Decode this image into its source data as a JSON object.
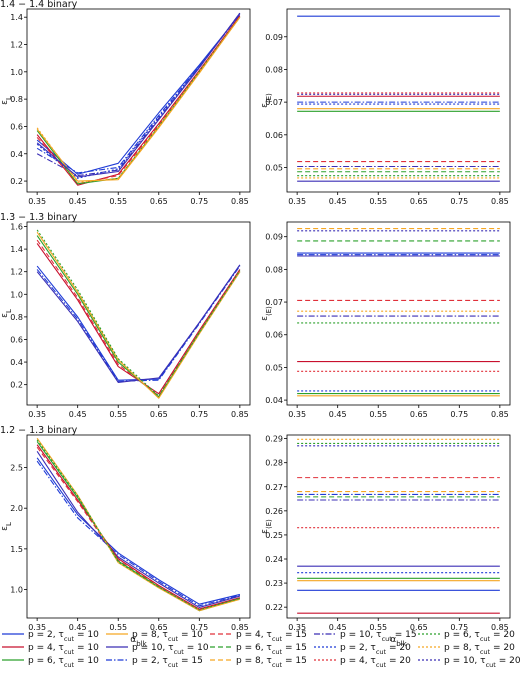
{
  "figure": {
    "series_styles": [
      {
        "key": "p2_10",
        "label": "p = 2, τcut = 10",
        "color": "#1f3bd6",
        "dash": ""
      },
      {
        "key": "p4_10",
        "label": "p = 4, τcut = 10",
        "color": "#c8102e",
        "dash": ""
      },
      {
        "key": "p6_10",
        "label": "p = 6, τcut = 10",
        "color": "#2ca02c",
        "dash": ""
      },
      {
        "key": "p8_10",
        "label": "p = 8, τcut = 10",
        "color": "#f5a623",
        "dash": ""
      },
      {
        "key": "p10_10",
        "label": "p = 10, τcut = 10",
        "color": "#3b2fb5",
        "dash": ""
      },
      {
        "key": "p2_15",
        "label": "p = 2, τcut = 15",
        "color": "#1f3bd6",
        "dash": "6,2,1.5,2"
      },
      {
        "key": "p4_15",
        "label": "p = 4, τcut = 15",
        "color": "#e0303a",
        "dash": "5,3"
      },
      {
        "key": "p6_15",
        "label": "p = 6, τcut = 15",
        "color": "#2ca02c",
        "dash": "5,3"
      },
      {
        "key": "p8_15",
        "label": "p = 8, τcut = 15",
        "color": "#f5a623",
        "dash": "5,3"
      },
      {
        "key": "p10_15",
        "label": "p = 10, τcut = 15",
        "color": "#3b2fb5",
        "dash": "6,2,1.5,2"
      },
      {
        "key": "p2_20",
        "label": "p = 2, τcut = 20",
        "color": "#1f3bd6",
        "dash": "2,2"
      },
      {
        "key": "p4_20",
        "label": "p = 4, τcut = 20",
        "color": "#e0303a",
        "dash": "2,2"
      },
      {
        "key": "p6_20",
        "label": "p = 6, τcut = 20",
        "color": "#2ca02c",
        "dash": "2,2"
      },
      {
        "key": "p8_20",
        "label": "p = 8, τcut = 20",
        "color": "#f5a623",
        "dash": "2,2"
      },
      {
        "key": "p10_20",
        "label": "p = 10, τcut = 20",
        "color": "#3b2fb5",
        "dash": "2,2"
      }
    ],
    "legend": {
      "placement": "bottom",
      "columns": [
        {
          "items": [
            "p = 2, τcut = 10",
            "p = 4, τcut = 10",
            "p = 6, τcut = 10"
          ]
        },
        {
          "items": [
            "p = 8, τcut = 10",
            "p = 10, τcut = 10",
            "p = 2, τcut = 15"
          ]
        },
        {
          "items": [
            "p = 4, τcut = 15",
            "p = 6, τcut = 15",
            "p = 8, τcut = 15"
          ]
        },
        {
          "items": [
            "p = 10, τcut = 15",
            "p = 2, τcut = 20",
            "p = 4, τcut = 20"
          ]
        },
        {
          "items": [
            "p = 6, τcut = 20",
            "p = 8, τcut = 20",
            "p = 10, τcut = 20"
          ]
        }
      ]
    }
  },
  "chart_data": [
    {
      "panel": "row1-left",
      "type": "line",
      "title": "1.4 − 1.4 binary",
      "ylabel": "εL",
      "xlabel": "",
      "x": [
        0.35,
        0.45,
        0.55,
        0.65,
        0.75,
        0.85
      ],
      "xticks": [
        "0.35",
        "0.45",
        "0.55",
        "0.65",
        "0.75",
        "0.85"
      ],
      "yticks": [
        "0.2",
        "0.4",
        "0.6",
        "0.8",
        "1.0",
        "1.2",
        "1.4"
      ],
      "xlim": [
        0.325,
        0.875
      ],
      "ylim": [
        0.12,
        1.46
      ],
      "grid": false,
      "series": [
        {
          "style": "p2_10",
          "values": [
            0.5,
            0.25,
            0.33,
            0.7,
            1.05,
            1.42
          ]
        },
        {
          "style": "p2_15",
          "values": [
            0.44,
            0.26,
            0.3,
            0.68,
            1.04,
            1.42
          ]
        },
        {
          "style": "p10_15",
          "values": [
            0.4,
            0.24,
            0.28,
            0.66,
            1.03,
            1.43
          ]
        },
        {
          "style": "p2_20",
          "values": [
            0.47,
            0.22,
            0.29,
            0.67,
            1.04,
            1.42
          ]
        },
        {
          "style": "p4_10",
          "values": [
            0.54,
            0.17,
            0.25,
            0.62,
            1.01,
            1.41
          ]
        },
        {
          "style": "p4_15",
          "values": [
            0.52,
            0.18,
            0.24,
            0.61,
            1.0,
            1.4
          ]
        },
        {
          "style": "p6_10",
          "values": [
            0.57,
            0.18,
            0.22,
            0.6,
            1.0,
            1.4
          ]
        },
        {
          "style": "p8_10",
          "values": [
            0.58,
            0.2,
            0.21,
            0.59,
            0.99,
            1.4
          ]
        },
        {
          "style": "p8_20",
          "values": [
            0.59,
            0.19,
            0.22,
            0.6,
            1.0,
            1.4
          ]
        },
        {
          "style": "p10_10",
          "values": [
            0.48,
            0.23,
            0.27,
            0.65,
            1.03,
            1.43
          ]
        }
      ]
    },
    {
      "panel": "row1-right",
      "type": "line",
      "title": "",
      "ylabel": "ε⟨E⟩",
      "xlabel": "",
      "x": [
        0.35,
        0.85
      ],
      "xticks": [
        "0.35",
        "0.45",
        "0.55",
        "0.65",
        "0.75",
        "0.85"
      ],
      "yticks": [
        "0.05",
        "0.06",
        "0.07",
        "0.08",
        "0.09"
      ],
      "xlim": [
        0.325,
        0.875
      ],
      "ylim": [
        0.0425,
        0.0985
      ],
      "grid": false,
      "series": [
        {
          "style": "p2_10",
          "values": [
            0.0963,
            0.0963
          ]
        },
        {
          "style": "p4_20",
          "values": [
            0.0728,
            0.0728
          ]
        },
        {
          "style": "p10_20",
          "values": [
            0.0724,
            0.0724
          ]
        },
        {
          "style": "p4_10",
          "values": [
            0.0718,
            0.0718
          ]
        },
        {
          "style": "p2_15",
          "values": [
            0.07,
            0.07
          ]
        },
        {
          "style": "p2_20",
          "values": [
            0.0694,
            0.0694
          ]
        },
        {
          "style": "p8_10",
          "values": [
            0.068,
            0.068
          ]
        },
        {
          "style": "p6_10",
          "values": [
            0.0672,
            0.0672
          ]
        },
        {
          "style": "p4_15",
          "values": [
            0.0518,
            0.0518
          ]
        },
        {
          "style": "p10_15",
          "values": [
            0.0503,
            0.0503
          ]
        },
        {
          "style": "p8_15",
          "values": [
            0.0496,
            0.0496
          ]
        },
        {
          "style": "p6_15",
          "values": [
            0.0487,
            0.0487
          ]
        },
        {
          "style": "p6_20",
          "values": [
            0.0475,
            0.0475
          ]
        },
        {
          "style": "p8_20",
          "values": [
            0.0468,
            0.0468
          ]
        },
        {
          "style": "p10_10",
          "values": [
            0.0458,
            0.0458
          ]
        }
      ]
    },
    {
      "panel": "row2-left",
      "type": "line",
      "title": "1.3 − 1.3 binary",
      "ylabel": "εL",
      "xlabel": "",
      "x": [
        0.35,
        0.45,
        0.55,
        0.65,
        0.75,
        0.85
      ],
      "xticks": [
        "0.35",
        "0.45",
        "0.55",
        "0.65",
        "0.75",
        "0.85"
      ],
      "yticks": [
        "0.2",
        "0.4",
        "0.6",
        "0.8",
        "1.0",
        "1.2",
        "1.4",
        "1.6"
      ],
      "xlim": [
        0.325,
        0.875
      ],
      "ylim": [
        0.02,
        1.64
      ],
      "grid": false,
      "series": [
        {
          "style": "p2_10",
          "values": [
            1.25,
            0.8,
            0.24,
            0.25,
            0.75,
            1.26
          ]
        },
        {
          "style": "p2_15",
          "values": [
            1.22,
            0.78,
            0.23,
            0.24,
            0.74,
            1.25
          ]
        },
        {
          "style": "p10_10",
          "values": [
            1.2,
            0.76,
            0.22,
            0.26,
            0.75,
            1.26
          ]
        },
        {
          "style": "p4_10",
          "values": [
            1.45,
            0.95,
            0.36,
            0.12,
            0.68,
            1.22
          ]
        },
        {
          "style": "p4_15",
          "values": [
            1.48,
            0.97,
            0.38,
            0.1,
            0.67,
            1.21
          ]
        },
        {
          "style": "p6_10",
          "values": [
            1.52,
            1.0,
            0.4,
            0.09,
            0.66,
            1.2
          ]
        },
        {
          "style": "p8_10",
          "values": [
            1.55,
            1.02,
            0.42,
            0.08,
            0.65,
            1.2
          ]
        },
        {
          "style": "p6_20",
          "values": [
            1.57,
            1.04,
            0.43,
            0.1,
            0.66,
            1.21
          ]
        }
      ]
    },
    {
      "panel": "row2-right",
      "type": "line",
      "title": "",
      "ylabel": "ε⟨E⟩",
      "xlabel": "",
      "x": [
        0.35,
        0.85
      ],
      "xticks": [
        "0.35",
        "0.45",
        "0.55",
        "0.65",
        "0.75",
        "0.85"
      ],
      "yticks": [
        "0.04",
        "0.05",
        "0.06",
        "0.07",
        "0.08",
        "0.09"
      ],
      "xlim": [
        0.325,
        0.875
      ],
      "ylim": [
        0.0385,
        0.0945
      ],
      "grid": false,
      "series": [
        {
          "style": "p8_15",
          "values": [
            0.0925,
            0.0925
          ]
        },
        {
          "style": "p10_20",
          "values": [
            0.0918,
            0.0918
          ]
        },
        {
          "style": "p6_15",
          "values": [
            0.0887,
            0.0887
          ]
        },
        {
          "style": "p2_10",
          "values": [
            0.085,
            0.085
          ]
        },
        {
          "style": "p2_15",
          "values": [
            0.0845,
            0.0845
          ]
        },
        {
          "style": "p10_10",
          "values": [
            0.0841,
            0.0841
          ]
        },
        {
          "style": "p4_15",
          "values": [
            0.0705,
            0.0705
          ]
        },
        {
          "style": "p8_20",
          "values": [
            0.0672,
            0.0672
          ]
        },
        {
          "style": "p10_15",
          "values": [
            0.0657,
            0.0657
          ]
        },
        {
          "style": "p6_20",
          "values": [
            0.0636,
            0.0636
          ]
        },
        {
          "style": "p4_10",
          "values": [
            0.0518,
            0.0518
          ]
        },
        {
          "style": "p4_20",
          "values": [
            0.0488,
            0.0488
          ]
        },
        {
          "style": "p2_20",
          "values": [
            0.0428,
            0.0428
          ]
        },
        {
          "style": "p6_10",
          "values": [
            0.042,
            0.042
          ]
        },
        {
          "style": "p8_10",
          "values": [
            0.0413,
            0.0413
          ]
        }
      ]
    },
    {
      "panel": "row3-left",
      "type": "line",
      "title": "1.2 − 1.3 binary",
      "ylabel": "εL",
      "xlabel": "αblk",
      "x": [
        0.35,
        0.45,
        0.55,
        0.65,
        0.75,
        0.85
      ],
      "xticks": [
        "0.35",
        "0.45",
        "0.55",
        "0.65",
        "0.75",
        "0.85"
      ],
      "yticks": [
        "1.0",
        "1.5",
        "2.0",
        "2.5"
      ],
      "xlim": [
        0.325,
        0.875
      ],
      "ylim": [
        0.65,
        2.9
      ],
      "grid": false,
      "series": [
        {
          "style": "p2_10",
          "values": [
            2.62,
            1.92,
            1.45,
            1.12,
            0.82,
            0.94
          ]
        },
        {
          "style": "p2_15",
          "values": [
            2.58,
            1.88,
            1.43,
            1.1,
            0.8,
            0.93
          ]
        },
        {
          "style": "p10_10",
          "values": [
            2.7,
            1.95,
            1.4,
            1.08,
            0.78,
            0.92
          ]
        },
        {
          "style": "p4_10",
          "values": [
            2.78,
            2.1,
            1.38,
            1.05,
            0.76,
            0.9
          ]
        },
        {
          "style": "p4_15",
          "values": [
            2.75,
            2.08,
            1.36,
            1.04,
            0.75,
            0.89
          ]
        },
        {
          "style": "p6_10",
          "values": [
            2.82,
            2.13,
            1.35,
            1.03,
            0.74,
            0.89
          ]
        },
        {
          "style": "p8_10",
          "values": [
            2.86,
            2.16,
            1.33,
            1.02,
            0.74,
            0.88
          ]
        },
        {
          "style": "p6_20",
          "values": [
            2.84,
            2.15,
            1.34,
            1.03,
            0.75,
            0.89
          ]
        }
      ]
    },
    {
      "panel": "row3-right",
      "type": "line",
      "title": "",
      "ylabel": "ε⟨E⟩",
      "xlabel": "αblk",
      "x": [
        0.35,
        0.85
      ],
      "xticks": [
        "0.35",
        "0.45",
        "0.55",
        "0.65",
        "0.75",
        "0.85"
      ],
      "yticks": [
        "0.22",
        "0.23",
        "0.24",
        "0.25",
        "0.26",
        "0.27",
        "0.28",
        "0.29"
      ],
      "xlim": [
        0.325,
        0.875
      ],
      "ylim": [
        0.2155,
        0.2915
      ],
      "grid": false,
      "series": [
        {
          "style": "p8_20",
          "values": [
            0.2897,
            0.2897
          ]
        },
        {
          "style": "p6_20",
          "values": [
            0.288,
            0.288
          ]
        },
        {
          "style": "p10_20",
          "values": [
            0.287,
            0.287
          ]
        },
        {
          "style": "p4_15",
          "values": [
            0.2738,
            0.2738
          ]
        },
        {
          "style": "p8_15",
          "values": [
            0.268,
            0.268
          ]
        },
        {
          "style": "p2_15",
          "values": [
            0.2668,
            0.2668
          ]
        },
        {
          "style": "p6_15",
          "values": [
            0.2658,
            0.2658
          ]
        },
        {
          "style": "p10_15",
          "values": [
            0.2645,
            0.2645
          ]
        },
        {
          "style": "p4_20",
          "values": [
            0.253,
            0.253
          ]
        },
        {
          "style": "p10_10",
          "values": [
            0.237,
            0.237
          ]
        },
        {
          "style": "p2_20",
          "values": [
            0.2343,
            0.2343
          ]
        },
        {
          "style": "p6_10",
          "values": [
            0.232,
            0.232
          ]
        },
        {
          "style": "p8_10",
          "values": [
            0.231,
            0.231
          ]
        },
        {
          "style": "p2_10",
          "values": [
            0.227,
            0.227
          ]
        },
        {
          "style": "p4_10",
          "values": [
            0.2175,
            0.2175
          ]
        }
      ]
    }
  ]
}
